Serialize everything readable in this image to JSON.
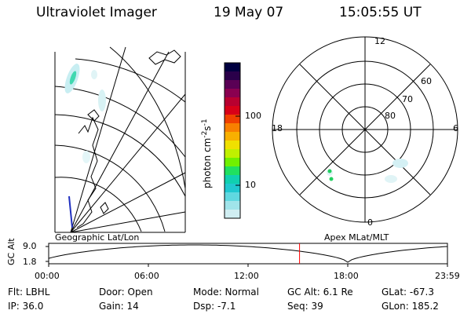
{
  "header": {
    "instrument": "Ultraviolet Imager",
    "date": "19 May 07",
    "time": "15:05:55 UT"
  },
  "left_map": {
    "label": "Geographic Lat/Lon"
  },
  "colorbar": {
    "unit_base": "photon cm",
    "unit_exp1": "-2",
    "unit_mid": "s",
    "unit_exp2": "-1",
    "ticks": [
      "100",
      "10"
    ],
    "colors": [
      "#000040",
      "#2a004a",
      "#5a0055",
      "#8a0050",
      "#b80030",
      "#d80018",
      "#f04000",
      "#f88000",
      "#f8b000",
      "#f0e000",
      "#c0f000",
      "#70f000",
      "#20e060",
      "#10d0b0",
      "#20c8d0",
      "#60d8e0",
      "#a0e4ea",
      "#d0eef2"
    ]
  },
  "polar": {
    "label": "Apex MLat/MLT",
    "mlt_labels": {
      "top": "12",
      "left": "18",
      "right": "6",
      "bottom": "0"
    },
    "lat_labels": [
      "60",
      "70",
      "80"
    ]
  },
  "timeline": {
    "ylabel": "GC Alt",
    "y_ticks": [
      "9.0",
      "1.8"
    ],
    "x_ticks": [
      "00:00",
      "06:00",
      "12:00",
      "18:00",
      "23:59"
    ],
    "current_fraction": 0.6291
  },
  "info": {
    "filter": "Flt: LBHL",
    "ip": "IP: 36.0",
    "door": "Door: Open",
    "gain": "Gain: 14",
    "mode": "Mode: Normal",
    "dsp": "Dsp:    -7.1",
    "gc_alt": "GC Alt: 6.1 Re",
    "seq": "Seq: 39",
    "glat": "GLat:  -67.3",
    "glon": "GLon: 185.2"
  }
}
